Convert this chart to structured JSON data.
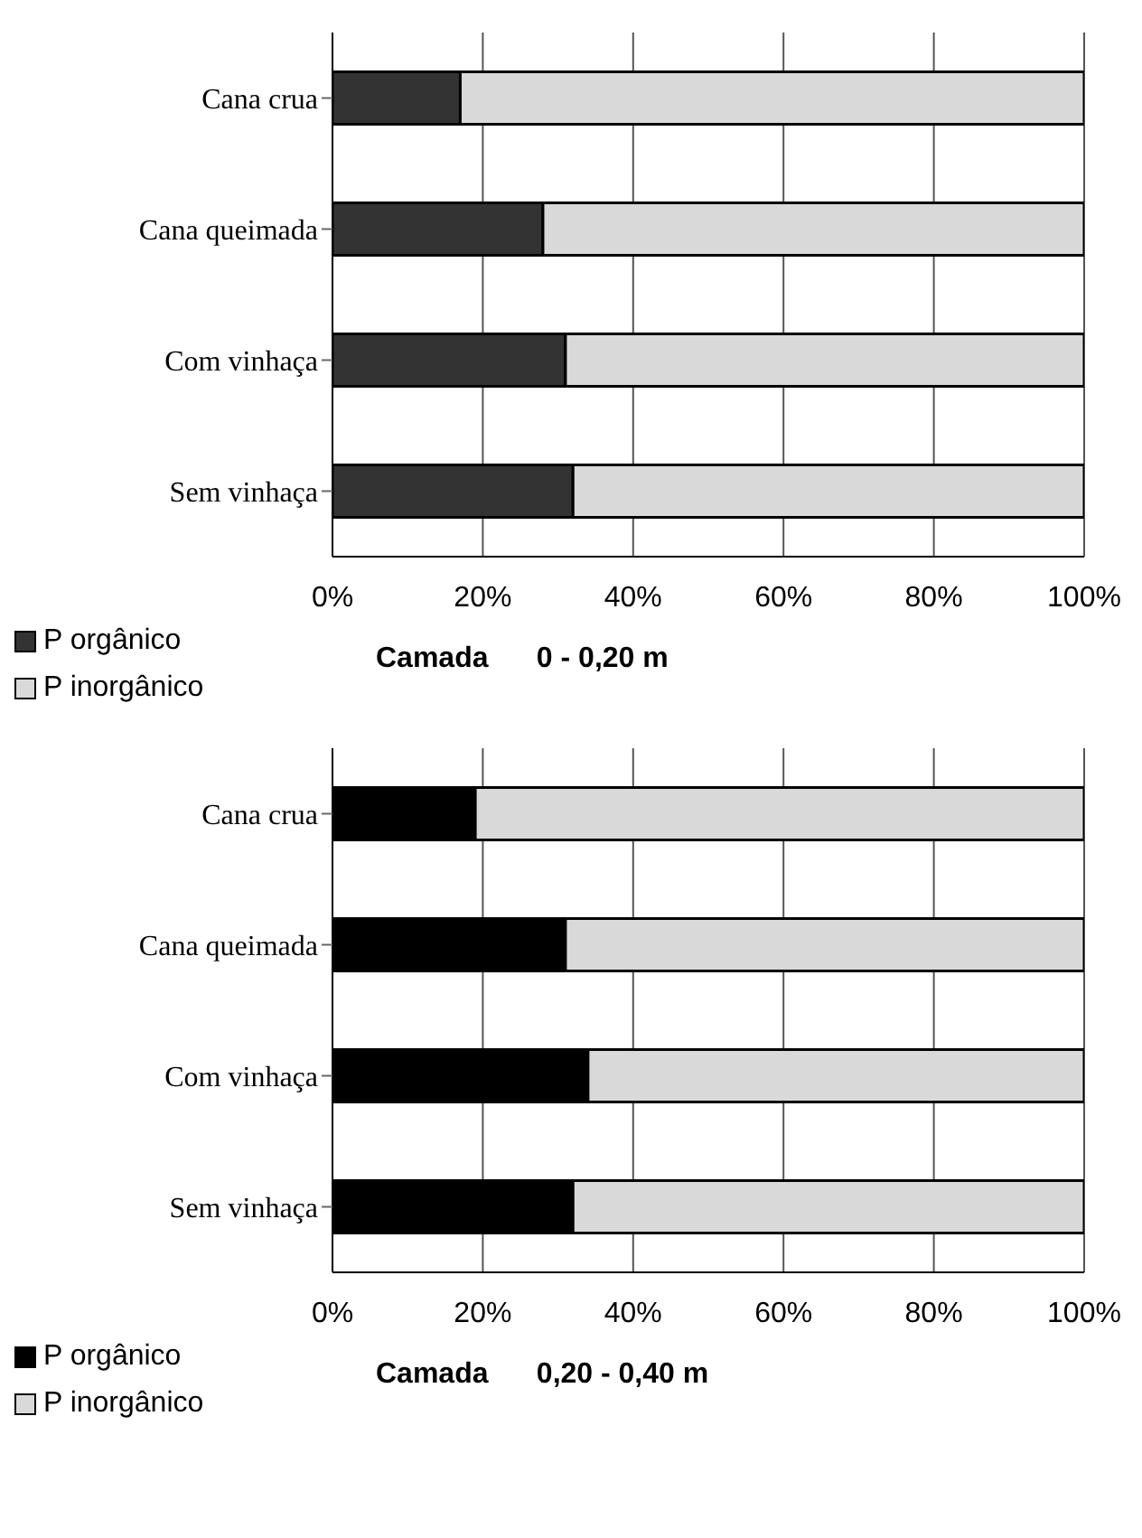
{
  "chart_data": [
    {
      "type": "bar",
      "orientation": "horizontal",
      "stacked": true,
      "xlabel": "Camada      0 - 0,20 m",
      "categories": [
        "Cana crua",
        "Cana queimada",
        "Com vinhaça",
        "Sem vinhaça"
      ],
      "series": [
        {
          "name": "P orgânico",
          "color": "#333333",
          "values": [
            17,
            28,
            31,
            32
          ]
        },
        {
          "name": "P inorgânico",
          "color": "#d9d9d9",
          "values": [
            83,
            72,
            69,
            68
          ]
        }
      ],
      "xlim": [
        0,
        100
      ],
      "xticks": [
        {
          "value": 0,
          "label": "0%"
        },
        {
          "value": 20,
          "label": "20%"
        },
        {
          "value": 40,
          "label": "40%"
        },
        {
          "value": 60,
          "label": "60%"
        },
        {
          "value": 80,
          "label": "80%"
        },
        {
          "value": 100,
          "label": "100%"
        }
      ],
      "grid": "x",
      "legend": "bottom left"
    },
    {
      "type": "bar",
      "orientation": "horizontal",
      "stacked": true,
      "xlabel": "Camada      0,20 - 0,40 m",
      "categories": [
        "Cana crua",
        "Cana queimada",
        "Com vinhaça",
        "Sem vinhaça"
      ],
      "series": [
        {
          "name": "P orgânico",
          "color": "#000000",
          "values": [
            19,
            31,
            34,
            32
          ]
        },
        {
          "name": "P inorgânico",
          "color": "#d9d9d9",
          "values": [
            81,
            69,
            66,
            68
          ]
        }
      ],
      "xlim": [
        0,
        100
      ],
      "xticks": [
        {
          "value": 0,
          "label": "0%"
        },
        {
          "value": 20,
          "label": "20%"
        },
        {
          "value": 40,
          "label": "40%"
        },
        {
          "value": 60,
          "label": "60%"
        },
        {
          "value": 80,
          "label": "80%"
        },
        {
          "value": 100,
          "label": "100%"
        }
      ],
      "grid": "x",
      "legend": "bottom left"
    }
  ]
}
